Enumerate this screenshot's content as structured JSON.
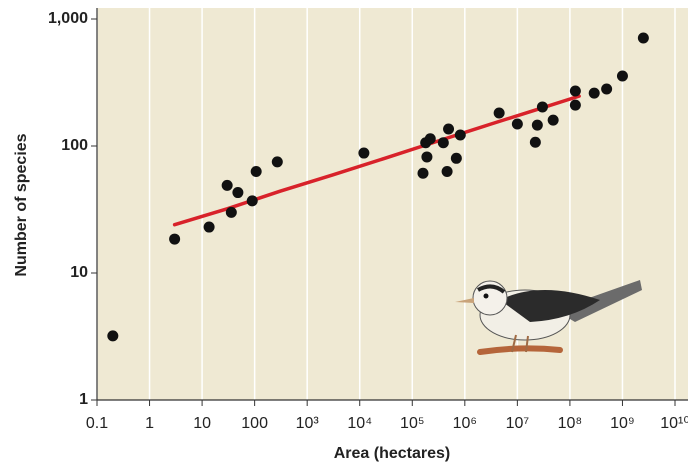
{
  "chart_data": {
    "type": "scatter",
    "xlabel": "Area (hectares)",
    "ylabel": "Number of species",
    "x": [
      0.2,
      3,
      13.6,
      30,
      48,
      36,
      90,
      107,
      270,
      12000,
      160000,
      190000,
      180000,
      220000,
      390000,
      460000,
      490000,
      690000,
      820000,
      4500000,
      10000000,
      22000000,
      24000000,
      30000000,
      48000000,
      127000000,
      127000000,
      290000000,
      500000000,
      1000000000,
      2500000000
    ],
    "values": [
      3.2,
      18.5,
      23,
      49,
      43,
      30,
      37,
      63,
      75,
      88,
      61,
      82,
      106,
      114,
      106,
      63,
      136,
      80,
      122,
      182,
      149,
      107,
      146,
      203,
      160,
      271,
      210,
      261,
      281,
      356,
      708
    ],
    "color": "#111111",
    "fit": {
      "x": [
        3,
        30,
        300,
        3000,
        30000,
        300000,
        3000000,
        30000000,
        150000000
      ],
      "values": [
        24,
        32,
        44,
        59,
        80,
        109,
        148,
        200,
        247
      ],
      "color": "#d8222a"
    },
    "xlim": [
      0.1,
      10000000000
    ],
    "ylim": [
      1,
      1000
    ],
    "xticks": [
      0.1,
      1,
      10,
      100,
      {
        "value": 1000,
        "label": "10³"
      },
      {
        "value": 10000,
        "label": "10⁴"
      },
      {
        "value": 100000,
        "label": "10⁵"
      },
      {
        "value": 1000000,
        "label": "10⁶"
      },
      {
        "value": 10000000,
        "label": "10⁷"
      },
      {
        "value": 100000000,
        "label": "10⁸"
      },
      {
        "value": 1000000000,
        "label": "10⁹"
      },
      {
        "value": 10000000000,
        "label": "10¹⁰"
      }
    ],
    "yticks": [
      1,
      10,
      100,
      {
        "value": 1000,
        "label": "1,000"
      }
    ],
    "log_x": true,
    "log_y": true,
    "grid": true
  }
}
